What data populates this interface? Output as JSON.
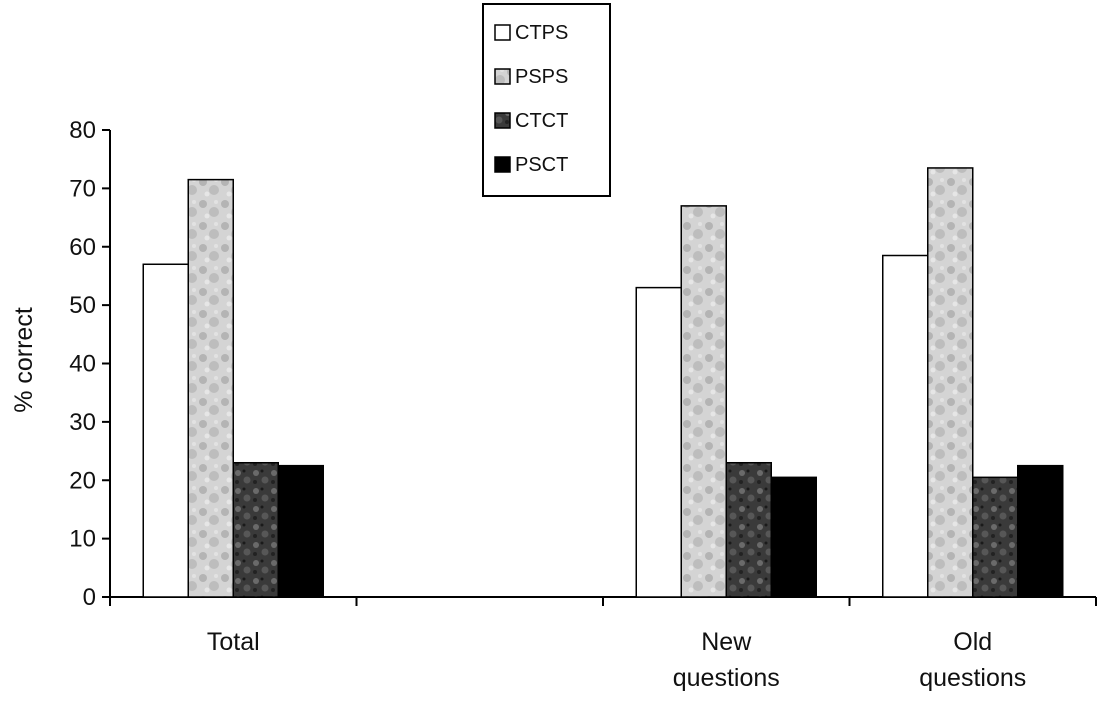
{
  "chart_data": {
    "type": "bar",
    "title": "",
    "xlabel": "",
    "ylabel": "% correct",
    "ylim": [
      0,
      80
    ],
    "yticks": [
      0,
      10,
      20,
      30,
      40,
      50,
      60,
      70,
      80
    ],
    "grid": false,
    "legend_position": "top-center",
    "categories": [
      {
        "label": "Total",
        "lines": [
          "Total"
        ]
      },
      {
        "label": "",
        "lines": []
      },
      {
        "label": "New questions",
        "lines": [
          "New",
          "questions"
        ]
      },
      {
        "label": "Old questions",
        "lines": [
          "Old",
          "questions"
        ]
      }
    ],
    "series": [
      {
        "name": "CTPS",
        "fill": "#ffffff",
        "pattern": "none",
        "values": [
          57,
          null,
          53,
          58.5
        ]
      },
      {
        "name": "PSPS",
        "fill": "#cfcfcf",
        "pattern": "light-mottled",
        "values": [
          71.5,
          null,
          67,
          73.5
        ]
      },
      {
        "name": "CTCT",
        "fill": "#3a3a3a",
        "pattern": "dark-mottled",
        "values": [
          23,
          null,
          23,
          20.5
        ]
      },
      {
        "name": "PSCT",
        "fill": "#000000",
        "pattern": "none",
        "values": [
          22.5,
          null,
          20.5,
          22.5
        ]
      }
    ]
  }
}
